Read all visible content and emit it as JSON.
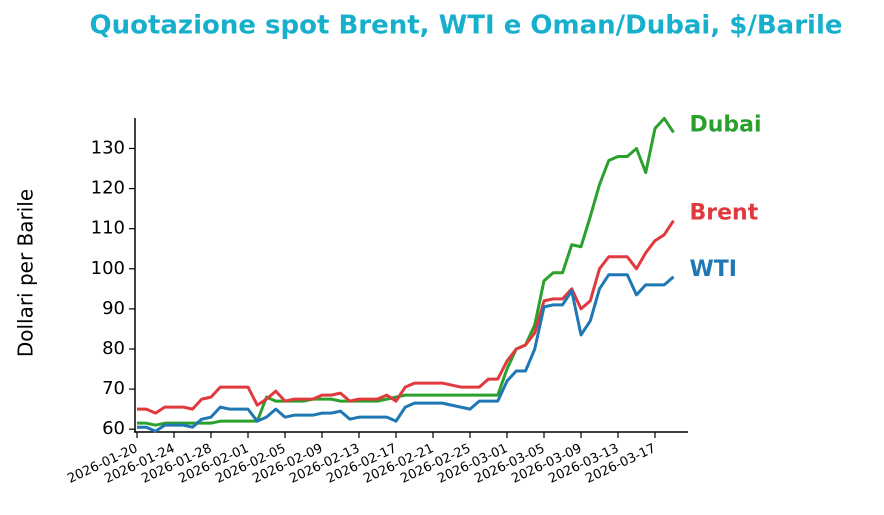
{
  "chart_data": {
    "type": "line",
    "title": "Quotazione spot Brent, WTI e Oman/Dubai, $/Barile",
    "y_label": "Dollari per Barile",
    "x": [
      "2026-01-20",
      "2026-01-21",
      "2026-01-22",
      "2026-01-23",
      "2026-01-24",
      "2026-01-25",
      "2026-01-26",
      "2026-01-27",
      "2026-01-28",
      "2026-01-29",
      "2026-01-30",
      "2026-01-31",
      "2026-02-01",
      "2026-02-02",
      "2026-02-03",
      "2026-02-04",
      "2026-02-05",
      "2026-02-06",
      "2026-02-07",
      "2026-02-08",
      "2026-02-09",
      "2026-02-10",
      "2026-02-11",
      "2026-02-12",
      "2026-02-13",
      "2026-02-14",
      "2026-02-15",
      "2026-02-16",
      "2026-02-17",
      "2026-02-18",
      "2026-02-19",
      "2026-02-20",
      "2026-02-21",
      "2026-02-22",
      "2026-02-23",
      "2026-02-24",
      "2026-02-25",
      "2026-02-26",
      "2026-02-27",
      "2026-02-28",
      "2026-03-01",
      "2026-03-02",
      "2026-03-03",
      "2026-03-04",
      "2026-03-05",
      "2026-03-06",
      "2026-03-07",
      "2026-03-08",
      "2026-03-09",
      "2026-03-10",
      "2026-03-11",
      "2026-03-12",
      "2026-03-13",
      "2026-03-14",
      "2026-03-15",
      "2026-03-16",
      "2026-03-17",
      "2026-03-18",
      "2026-03-19"
    ],
    "series": [
      {
        "name": "Dubai",
        "color": "#2ca02c",
        "values": [
          61.5,
          61.5,
          61,
          61.5,
          61.5,
          61.5,
          61.5,
          61.5,
          61.5,
          62,
          62,
          62,
          62,
          62,
          68,
          67,
          67,
          67,
          67,
          67.5,
          67.5,
          67.5,
          67,
          67,
          67,
          67,
          67,
          67.5,
          68,
          68.5,
          68.5,
          68.5,
          68.5,
          68.5,
          68.5,
          68.5,
          68.5,
          68.5,
          68.5,
          68.5,
          75,
          80,
          81,
          86,
          97,
          99,
          99,
          106,
          105.5,
          113,
          121,
          127,
          128,
          128,
          130,
          124,
          135,
          137.5,
          134
        ]
      },
      {
        "name": "Brent",
        "color": "#e0393e",
        "values": [
          65,
          65,
          64,
          65.5,
          65.5,
          65.5,
          65,
          67.5,
          68,
          70.5,
          70.5,
          70.5,
          70.5,
          66,
          67.5,
          69.5,
          67,
          67.5,
          67.5,
          67.5,
          68.5,
          68.5,
          69,
          67,
          67.5,
          67.5,
          67.5,
          68.5,
          67,
          70.5,
          71.5,
          71.5,
          71.5,
          71.5,
          71,
          70.5,
          70.5,
          70.5,
          72.5,
          72.5,
          77,
          80,
          81,
          84,
          92,
          92.5,
          92.5,
          95,
          90,
          92,
          100,
          103,
          103,
          103,
          100,
          104,
          107,
          108.5,
          112
        ]
      },
      {
        "name": "WTI",
        "color": "#1f77b4",
        "values": [
          60.5,
          60.5,
          59.5,
          61,
          61,
          61,
          60.5,
          62.5,
          63,
          65.5,
          65,
          65,
          65,
          62,
          63,
          65,
          63,
          63.5,
          63.5,
          63.5,
          64,
          64,
          64.5,
          62.5,
          63,
          63,
          63,
          63,
          62,
          65.5,
          66.5,
          66.5,
          66.5,
          66.5,
          66,
          65.5,
          65,
          67,
          67,
          67,
          72,
          74.5,
          74.5,
          80,
          90.5,
          91,
          91,
          94.5,
          83.5,
          87,
          95,
          98.5,
          98.5,
          98.5,
          93.5,
          96,
          96,
          96,
          98
        ]
      }
    ],
    "xticks": [
      "2026-01-20",
      "2026-01-24",
      "2026-01-28",
      "2026-02-01",
      "2026-02-05",
      "2026-02-09",
      "2026-02-13",
      "2026-02-17",
      "2026-02-21",
      "2026-02-25",
      "2026-03-01",
      "2026-03-05",
      "2026-03-09",
      "2026-03-13",
      "2026-03-17"
    ],
    "ylim": [
      59.3,
      137.6
    ],
    "yticks": [
      60,
      70,
      80,
      90,
      100,
      110,
      120,
      130
    ]
  }
}
